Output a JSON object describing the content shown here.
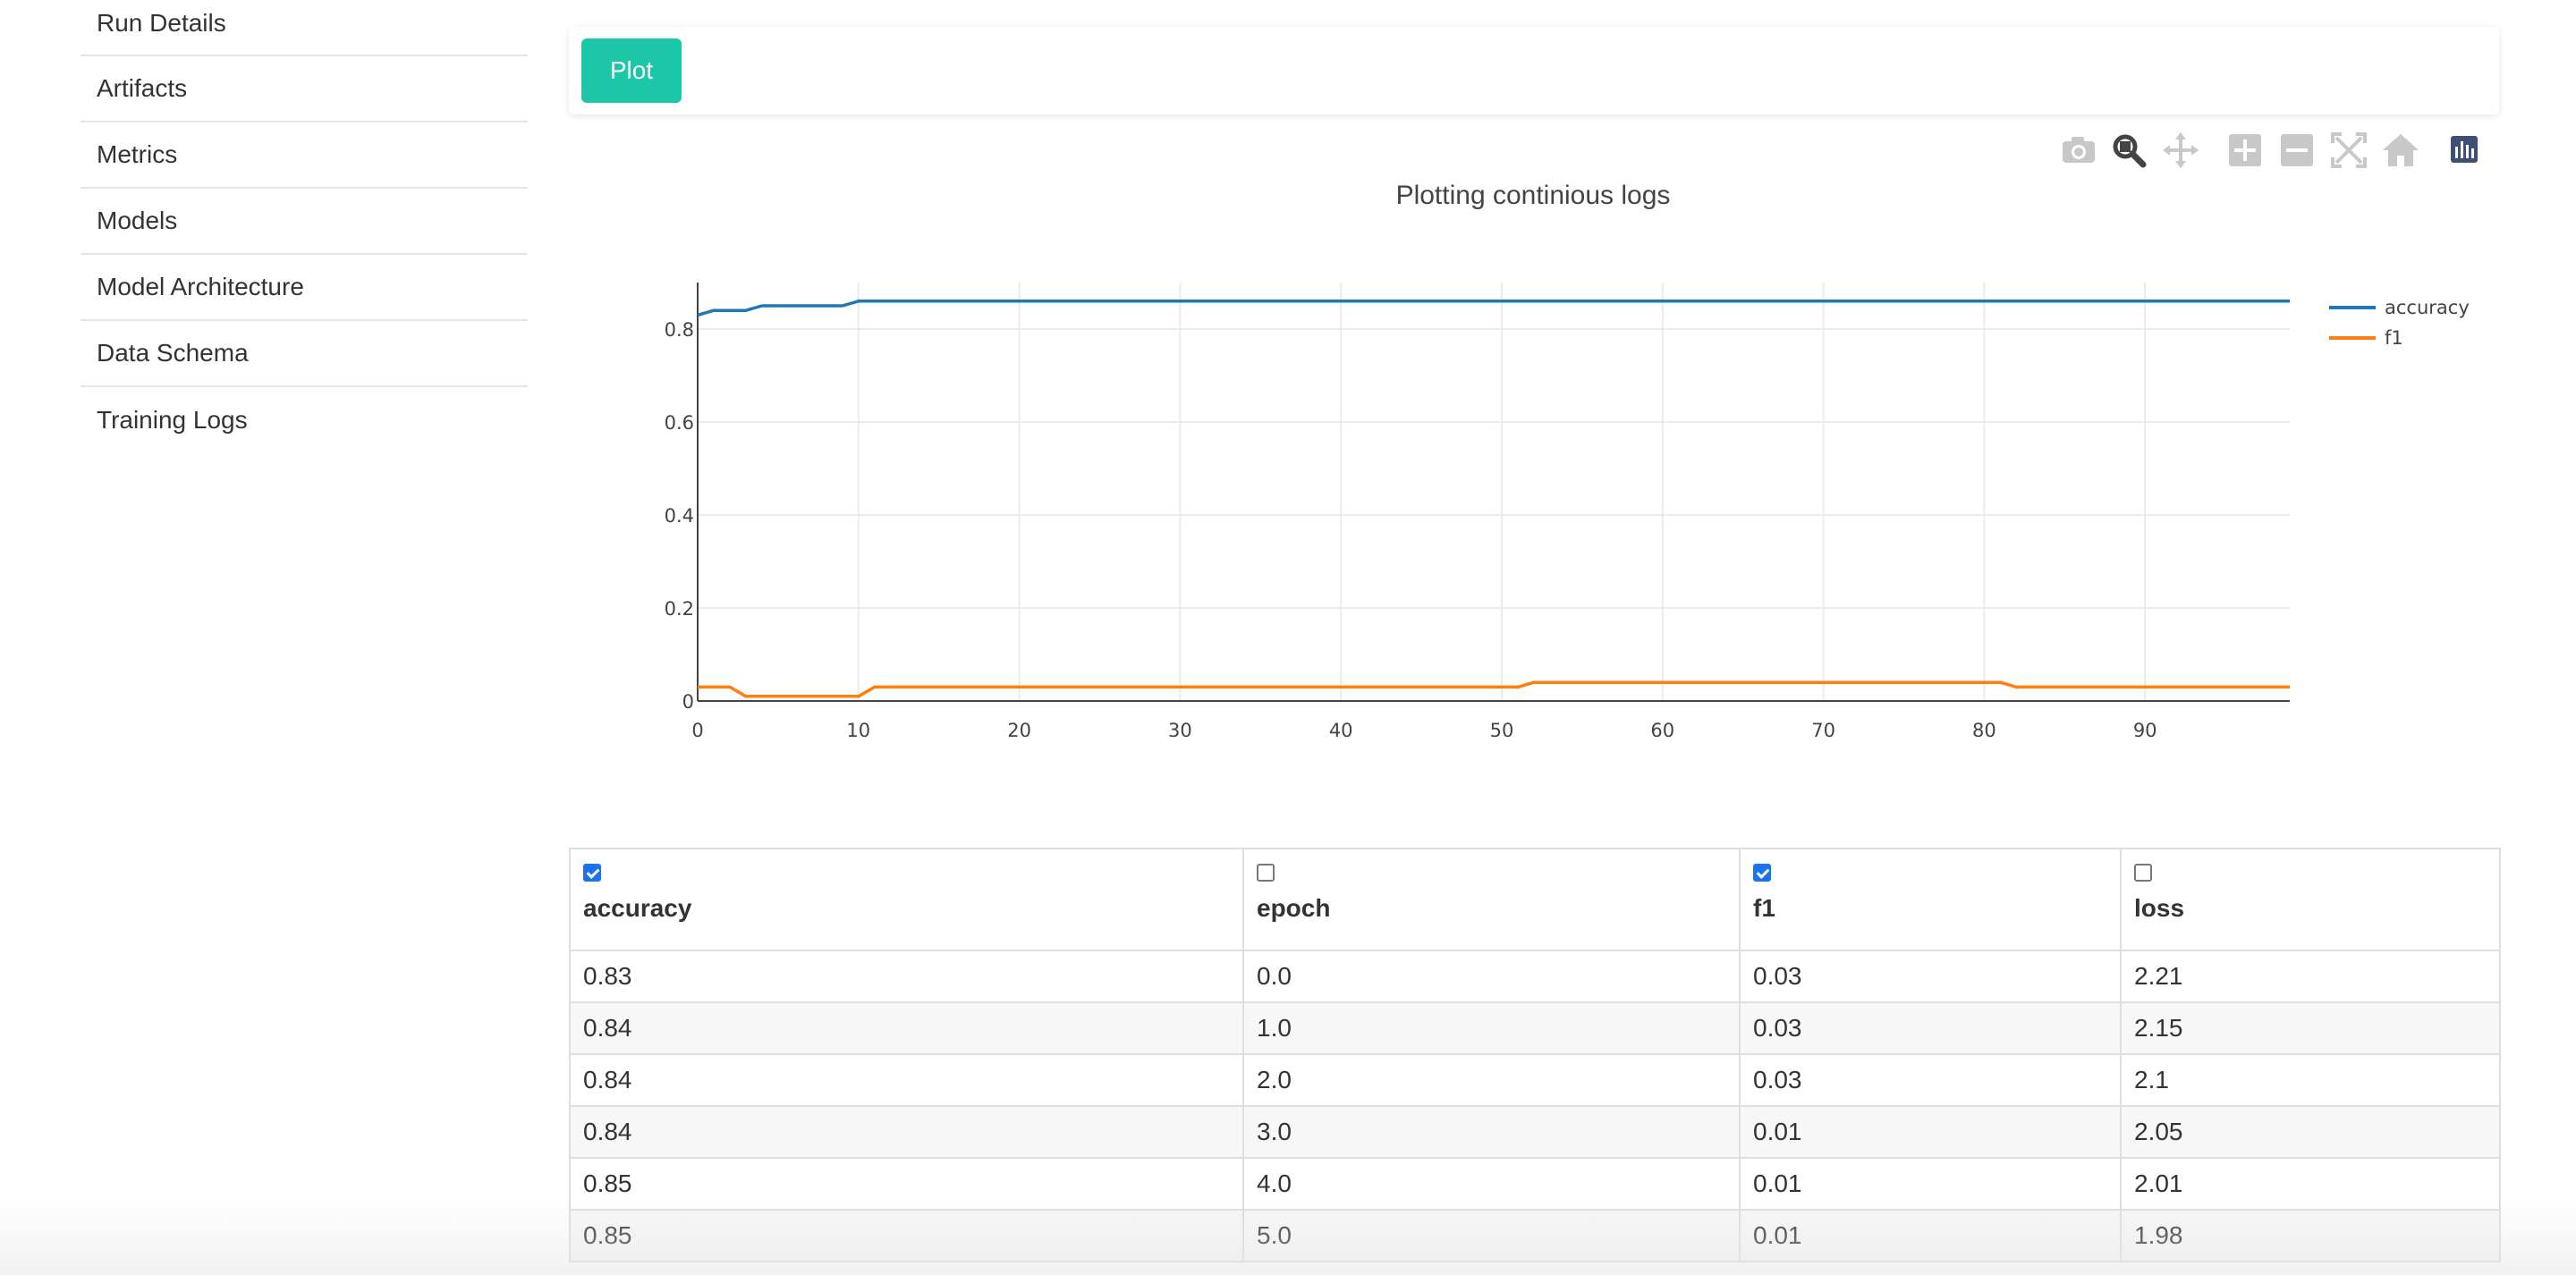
{
  "sidebar": {
    "items": [
      {
        "label": "Run Details"
      },
      {
        "label": "Artifacts"
      },
      {
        "label": "Metrics"
      },
      {
        "label": "Models"
      },
      {
        "label": "Model Architecture"
      },
      {
        "label": "Data Schema"
      },
      {
        "label": "Training Logs"
      }
    ]
  },
  "toolbar": {
    "plot_label": "Plot"
  },
  "modebar": {
    "icons": [
      "camera-icon",
      "zoom-icon",
      "pan-icon",
      "zoom-in-icon",
      "zoom-out-icon",
      "autoscale-icon",
      "reset-axes-icon",
      "plotly-logo-icon"
    ]
  },
  "chart_data": {
    "type": "line",
    "title": "Plotting continious logs",
    "xlabel": "",
    "ylabel": "",
    "xlim": [
      0,
      99
    ],
    "ylim": [
      0,
      0.9
    ],
    "x_ticks": [
      0,
      10,
      20,
      30,
      40,
      50,
      60,
      70,
      80,
      90
    ],
    "y_ticks": [
      0,
      0.2,
      0.4,
      0.6,
      0.8
    ],
    "y_tick_labels": [
      "0",
      "0.2",
      "0.4",
      "0.6",
      "0.8"
    ],
    "grid": true,
    "legend_position": "top-right",
    "series": [
      {
        "name": "accuracy",
        "color": "#1f77b4",
        "points": [
          [
            0,
            0.83
          ],
          [
            1,
            0.84
          ],
          [
            3,
            0.84
          ],
          [
            4,
            0.85
          ],
          [
            9,
            0.85
          ],
          [
            10,
            0.86
          ],
          [
            99,
            0.86
          ]
        ]
      },
      {
        "name": "f1",
        "color": "#ff7f0e",
        "points": [
          [
            0,
            0.03
          ],
          [
            2,
            0.03
          ],
          [
            3,
            0.01
          ],
          [
            10,
            0.01
          ],
          [
            11,
            0.03
          ],
          [
            51,
            0.03
          ],
          [
            52,
            0.04
          ],
          [
            81,
            0.04
          ],
          [
            82,
            0.03
          ],
          [
            99,
            0.03
          ]
        ]
      }
    ]
  },
  "table": {
    "columns": [
      {
        "name": "accuracy",
        "checked": true
      },
      {
        "name": "epoch",
        "checked": false
      },
      {
        "name": "f1",
        "checked": true
      },
      {
        "name": "loss",
        "checked": false
      }
    ],
    "rows": [
      [
        "0.83",
        "0.0",
        "0.03",
        "2.21"
      ],
      [
        "0.84",
        "1.0",
        "0.03",
        "2.15"
      ],
      [
        "0.84",
        "2.0",
        "0.03",
        "2.1"
      ],
      [
        "0.84",
        "3.0",
        "0.01",
        "2.05"
      ],
      [
        "0.85",
        "4.0",
        "0.01",
        "2.01"
      ],
      [
        "0.85",
        "5.0",
        "0.01",
        "1.98"
      ]
    ]
  }
}
